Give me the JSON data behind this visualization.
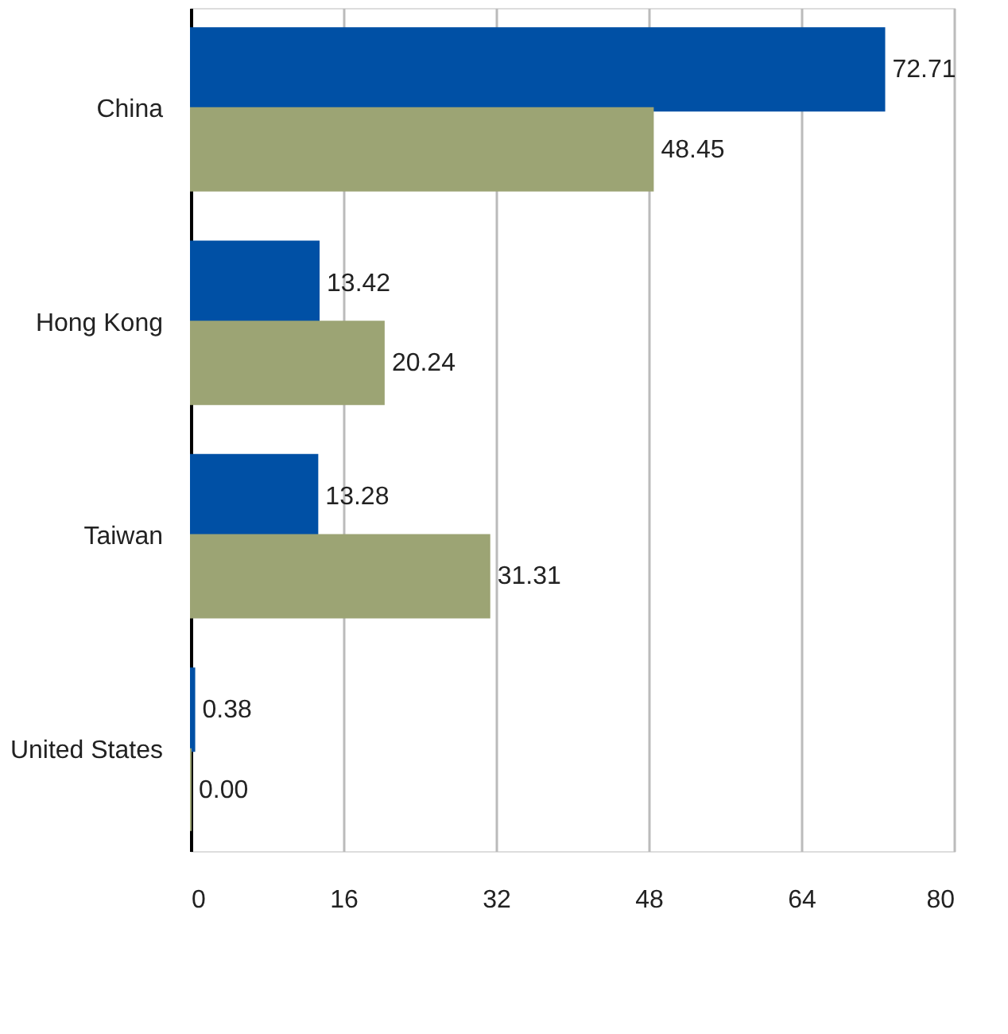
{
  "chart_data": {
    "type": "bar",
    "orientation": "horizontal",
    "categories": [
      "China",
      "Hong Kong",
      "Taiwan",
      "United States"
    ],
    "series": [
      {
        "color": "#0050a5",
        "values": [
          72.71,
          13.42,
          13.28,
          0.38
        ],
        "value_labels": [
          "72.71",
          "13.42",
          "13.28",
          "0.38"
        ]
      },
      {
        "color": "#9ca474",
        "values": [
          48.45,
          20.24,
          31.31,
          0.0
        ],
        "value_labels": [
          "48.45",
          "20.24",
          "31.31",
          "0.00"
        ]
      }
    ],
    "xlim": [
      0,
      80
    ],
    "xticks": [
      0,
      16,
      32,
      48,
      64,
      80
    ],
    "grid": "x"
  }
}
